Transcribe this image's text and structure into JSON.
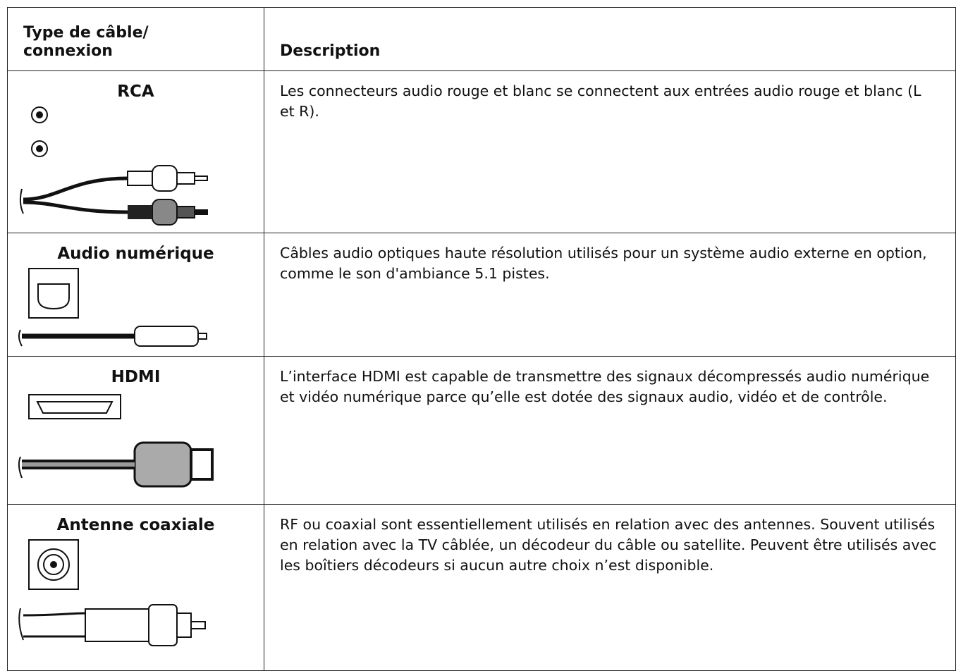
{
  "header": {
    "col1": [
      "Type de câble/",
      "connexion"
    ],
    "col2": "Description"
  },
  "rows": [
    {
      "name": "RCA",
      "description": "Les connecteurs audio rouge et blanc se connectent aux entrées audio rouge et blanc (L et R)."
    },
    {
      "name": "Audio numérique",
      "description": "Câbles audio optiques haute résolution utilisés pour un système audio externe en option, comme le son d'ambiance 5.1 pistes."
    },
    {
      "name": "HDMI",
      "description": "L’interface HDMI est capable de transmettre des signaux décompressés audio numérique et vidéo numérique parce qu’elle est dotée des signaux audio, vidéo et de contrôle."
    },
    {
      "name": "Antenne coaxiale",
      "description": "RF ou coaxial sont essentiellement utilisés en relation avec des antennes. Souvent utilisés en relation avec la TV câblée, un décodeur du câble ou satellite. Peuvent être utilisés avec les boîtiers décodeurs si aucun autre choix n’est disponible."
    }
  ]
}
